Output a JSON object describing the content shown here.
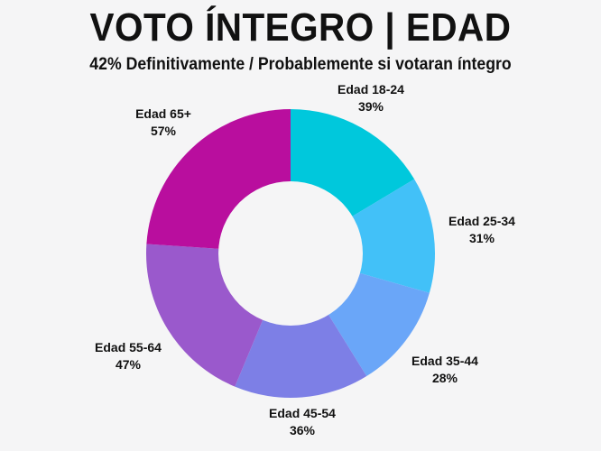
{
  "header": {
    "title": "VOTO ÍNTEGRO | EDAD",
    "subtitle": "42% Definitivamente / Probablemente si votaran íntegro"
  },
  "colors": {
    "background": "#f5f5f6"
  },
  "chart_data": {
    "type": "pie",
    "variant": "donut",
    "title": "VOTO ÍNTEGRO | EDAD",
    "subtitle": "42% Definitivamente / Probablemente si votaran íntegro",
    "categories": [
      "Edad 18-24",
      "Edad 25-34",
      "Edad 35-44",
      "Edad 45-54",
      "Edad 55-64",
      "Edad 65+"
    ],
    "values": [
      39,
      31,
      28,
      36,
      47,
      57
    ],
    "value_labels": [
      "39%",
      "31%",
      "28%",
      "36%",
      "47%",
      "57%"
    ],
    "colors": [
      "#00c8dc",
      "#42c1f8",
      "#6aa6f8",
      "#7d7fe6",
      "#9a59cc",
      "#b90e9e"
    ],
    "start_angle": "top, clockwise",
    "legend": "none (labels placed beside slices)"
  },
  "labels": [
    {
      "name": "Edad 18-24",
      "value": "39%"
    },
    {
      "name": "Edad 25-34",
      "value": "31%"
    },
    {
      "name": "Edad 35-44",
      "value": "28%"
    },
    {
      "name": "Edad 45-54",
      "value": "36%"
    },
    {
      "name": "Edad 55-64",
      "value": "47%"
    },
    {
      "name": "Edad 65+",
      "value": "57%"
    }
  ]
}
